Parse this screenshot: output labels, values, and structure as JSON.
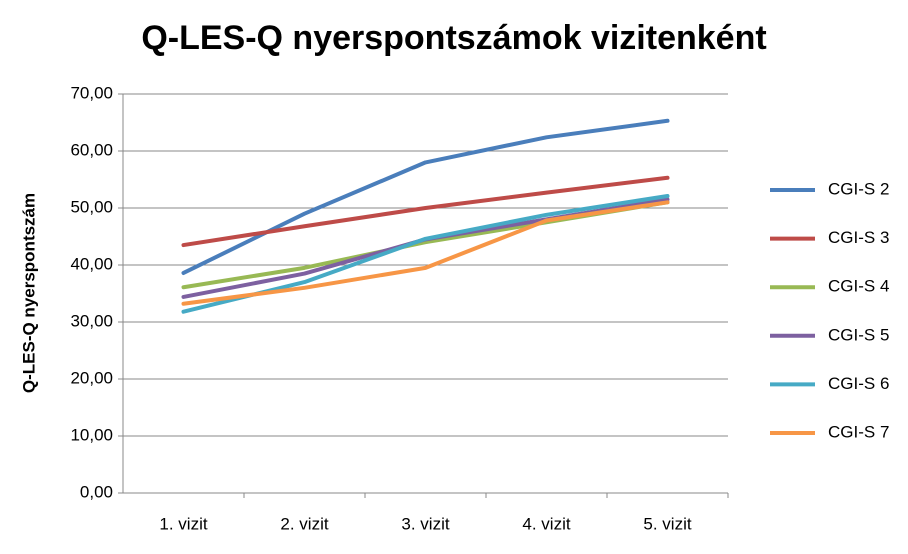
{
  "chart_data": {
    "type": "line",
    "title": "Q-LES-Q nyerspontszámok vizitenként",
    "y_label": "Q-LES-Q nyerspontszám",
    "categories": [
      "1. vizit",
      "2. vizit",
      "3. vizit",
      "4. vizit",
      "5. vizit"
    ],
    "series": [
      {
        "name": "CGI-S 2",
        "color": "#4a7ebb",
        "values": [
          38.6,
          49,
          58,
          62.4,
          65.3
        ]
      },
      {
        "name": "CGI-S 3",
        "color": "#be4b48",
        "values": [
          43.5,
          46.8,
          50,
          52.7,
          55.3
        ]
      },
      {
        "name": "CGI-S 4",
        "color": "#98b954",
        "values": [
          36.1,
          39.5,
          44,
          47.5,
          51
        ]
      },
      {
        "name": "CGI-S 5",
        "color": "#7d60a0",
        "values": [
          34.4,
          38.5,
          44.5,
          48,
          51.5
        ]
      },
      {
        "name": "CGI-S 6",
        "color": "#46aac5",
        "values": [
          31.8,
          37,
          44.6,
          48.8,
          52.1
        ]
      },
      {
        "name": "CGI-S 7",
        "color": "#f79646",
        "values": [
          33.2,
          36,
          39.5,
          47.8,
          51
        ]
      }
    ],
    "ylim": [
      0,
      70
    ],
    "yticks": [
      {
        "value": 0,
        "label": "0,00"
      },
      {
        "value": 10,
        "label": "10,00"
      },
      {
        "value": 20,
        "label": "20,00"
      },
      {
        "value": 30,
        "label": "30,00"
      },
      {
        "value": 40,
        "label": "40,00"
      },
      {
        "value": 50,
        "label": "50,00"
      },
      {
        "value": 60,
        "label": "60,00"
      },
      {
        "value": 70,
        "label": "70,00"
      }
    ],
    "grid": true,
    "legend": "right"
  }
}
